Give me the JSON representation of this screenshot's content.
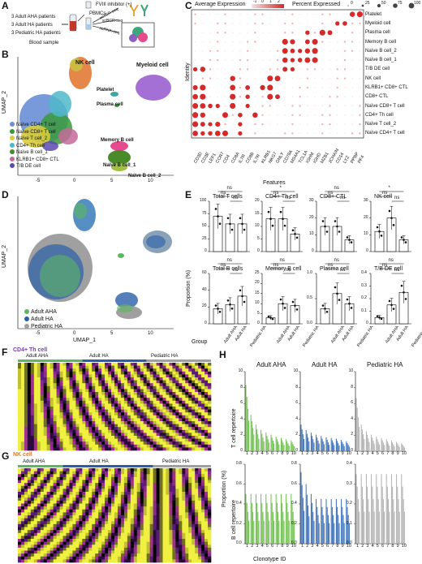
{
  "panels": {
    "A": {
      "letter": "A",
      "cohorts": [
        "3 Adult AHA patients",
        "3 Adult HA patients",
        "3 Pediatric HA patients"
      ],
      "blood_sample": "Blood sample",
      "fviii": "FVIII inhibitor (+)",
      "pbmcs": "PBMCs",
      "tcr": "scTCR-seq",
      "bcr": "scBCR-seq",
      "rna": "scRNA-seq"
    },
    "B": {
      "letter": "B",
      "xlabel": "UMAP_1",
      "ylabel": "UMAP_2",
      "xticks": [
        "-5",
        "0",
        "5",
        "10"
      ],
      "yticks": [
        "10",
        "5",
        "0",
        "-5"
      ],
      "cluster_labels": [
        "NK cell",
        "Myeloid cell",
        "Platelet",
        "Plasma cell",
        "Memory B cell",
        "Naïve B cell_1",
        "Naïve B cell_2"
      ],
      "legend": [
        {
          "label": "Naïve CD4+ T cell",
          "color": "#6a8fd6"
        },
        {
          "label": "Naïve CD8+ T cell",
          "color": "#3a9a3a"
        },
        {
          "label": "Naïve T cell_2",
          "color": "#d6cc3c"
        },
        {
          "label": "CD4+ Th cell",
          "color": "#4fb8c9"
        },
        {
          "label": "Naïve B cell_1",
          "color": "#4a8a2a"
        },
        {
          "label": "KLRB1+ CD8+ CTL",
          "color": "#c46a9a"
        },
        {
          "label": "T/B DE cell",
          "color": "#5c4ab0"
        }
      ]
    },
    "C": {
      "letter": "C",
      "avg_expr": "Average Expression",
      "avg_ticks": [
        "-1",
        "0",
        "1",
        "2"
      ],
      "pct_expr": "Percent Expressed",
      "pct_ticks": [
        "0",
        "25",
        "50",
        "75",
        "100"
      ],
      "ylabel": "Identity",
      "xlabel": "Features",
      "rows": [
        "Platelet",
        "Myeloid cell",
        "Plasma cell",
        "Memory B cell",
        "Naïve B cell_2",
        "Naïve B cell_1",
        "T/B DE cell",
        "NK cell",
        "KLRB1+ CD8+ CTL",
        "CD8+ CTL",
        "Naïve CD8+ T cell",
        "CD4+ Th cell",
        "Naïve T cell_2",
        "Naïve CD4+ T cell"
      ],
      "genes": [
        "CD3D",
        "CD3E",
        "LEF1",
        "CCR7",
        "CD4",
        "CD8A",
        "IL7R",
        "CD8B",
        "IL7R",
        "KLRB1",
        "NKG7",
        "GNLY",
        "CD79A",
        "MS4A1",
        "TCL1A",
        "IGHM",
        "IGHD",
        "MZB1",
        "JCHAIN",
        "CD14",
        "LYZ",
        "PPBP",
        "PF4"
      ]
    },
    "D": {
      "letter": "D",
      "xlabel": "UMAP_1",
      "ylabel": "UMAP_2",
      "xticks": [
        "-5",
        "0",
        "5",
        "10"
      ],
      "yticks": [
        "10",
        "5",
        "0",
        "-5"
      ],
      "legend": [
        {
          "label": "Adult AHA",
          "color": "#5cb85c"
        },
        {
          "label": "Adult HA",
          "color": "#2a5fa8"
        },
        {
          "label": "Pediatric HA",
          "color": "#a0a0a0"
        }
      ]
    },
    "E": {
      "letter": "E",
      "ylabel": "Proportion (%)",
      "xlabel": "Group",
      "groups": [
        "Adult AHA",
        "Adult HA",
        "Pediatric HA"
      ],
      "subplots": [
        {
          "title": "Total T cells",
          "ylim": [
            0,
            100
          ],
          "yticks": [
            "0",
            "25",
            "50",
            "75",
            "100"
          ],
          "means": [
            70,
            55,
            55
          ],
          "sig": [
            "ns",
            "ns",
            "ns"
          ]
        },
        {
          "title": "CD4+ Th cell",
          "ylim": [
            0,
            20
          ],
          "yticks": [
            "0",
            "5",
            "10",
            "15",
            "20"
          ],
          "means": [
            13,
            13,
            7
          ],
          "sig": [
            "ns",
            "ns",
            "*"
          ]
        },
        {
          "title": "CD8+ CTL",
          "ylim": [
            0,
            30
          ],
          "yticks": [
            "0",
            "10",
            "20",
            "30"
          ],
          "means": [
            15,
            15,
            7
          ],
          "sig": [
            "ns",
            "ns",
            "ns"
          ]
        },
        {
          "title": "NK cell",
          "ylim": [
            0,
            30
          ],
          "yticks": [
            "0",
            "10",
            "20",
            "30"
          ],
          "means": [
            12,
            20,
            7
          ],
          "sig": [
            "ns",
            "ns",
            "*"
          ]
        },
        {
          "title": "Total B cells",
          "ylim": [
            0,
            60
          ],
          "yticks": [
            "0",
            "20",
            "40",
            "60"
          ],
          "means": [
            18,
            23,
            33
          ],
          "sig": [
            "ns",
            "ns",
            "ns"
          ]
        },
        {
          "title": "Memory B cell",
          "ylim": [
            0,
            25
          ],
          "yticks": [
            "0",
            "5",
            "10",
            "15",
            "20",
            "25"
          ],
          "means": [
            3,
            10,
            9
          ],
          "sig": [
            "ns",
            "ns",
            "ns"
          ]
        },
        {
          "title": "Plasma cell",
          "ylim": [
            0,
            1.0
          ],
          "yticks": [
            "0.0",
            "0.5",
            "1.0"
          ],
          "means": [
            0.3,
            0.6,
            0.4
          ],
          "sig": [
            "ns",
            "ns",
            "ns"
          ]
        },
        {
          "title": "T/B DE cell",
          "ylim": [
            0,
            0.4
          ],
          "yticks": [
            "0",
            "0.1",
            "0.2",
            "0.3",
            "0.4"
          ],
          "means": [
            0.05,
            0.15,
            0.25
          ],
          "sig": [
            "ns",
            "ns",
            "ns"
          ]
        }
      ]
    },
    "F": {
      "letter": "F",
      "title": "CD4+ Th cell",
      "groups": [
        "Adult AHA",
        "Adult HA",
        "Pediatric HA"
      ]
    },
    "G": {
      "letter": "G",
      "title": "NK cell",
      "groups": [
        "Adult AHA",
        "Adult HA",
        "Pediatric HA"
      ]
    },
    "H": {
      "letter": "H",
      "columns": [
        "Adult AHA",
        "Adult HA",
        "Pediatric HA"
      ],
      "row_labels": [
        "T cell repertoire",
        "B cell repertoire"
      ],
      "ylabel": "Proportion (%)",
      "xlabel": "Clonotype ID",
      "xticks": [
        "1",
        "2",
        "3",
        "4",
        "5",
        "6",
        "7",
        "8",
        "9",
        "10"
      ],
      "yticks_t": [
        [
          "0",
          "2",
          "4",
          "6",
          "8",
          "10"
        ],
        [
          "0",
          "2",
          "4",
          "6",
          "8",
          "10"
        ],
        [
          "0",
          "2",
          "4",
          "6",
          "8",
          "10"
        ]
      ],
      "yticks_b": [
        [
          "0.0",
          "0.2",
          "0.4",
          "0.6",
          "0.8"
        ],
        [
          "0.0",
          "0.2",
          "0.4",
          "0.6",
          "0.8"
        ],
        [
          "0.0",
          "0.1",
          "0.2",
          "0.3",
          "0.4"
        ]
      ],
      "colors": [
        "#6cc04a",
        "#3a6fb8",
        "#b0b0b0"
      ]
    }
  }
}
